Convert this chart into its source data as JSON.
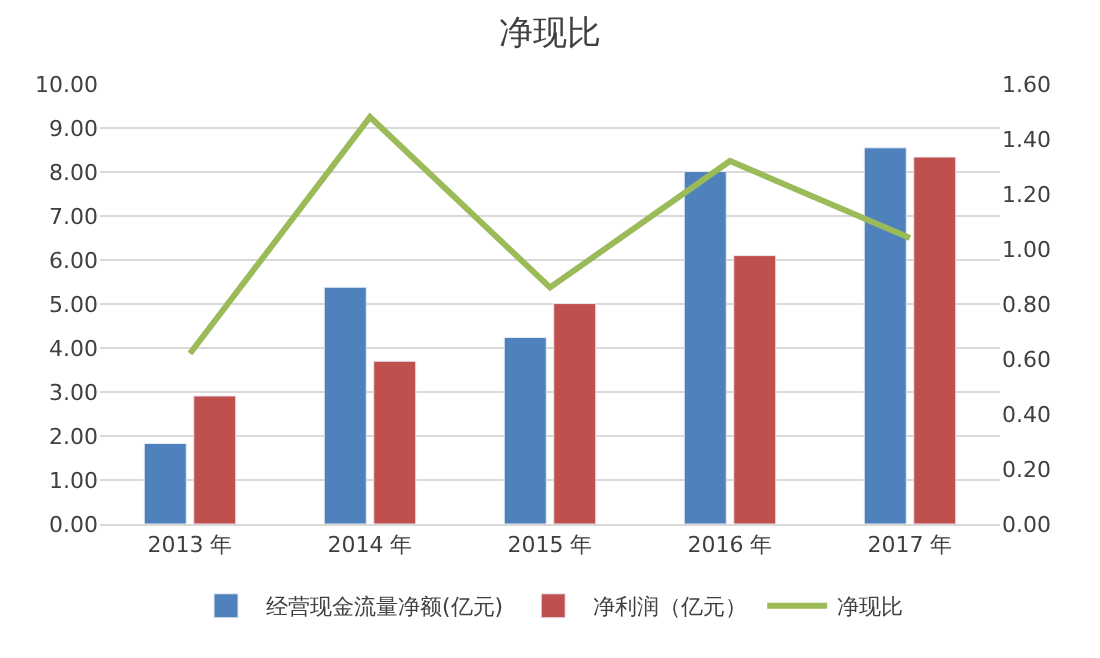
{
  "chart_data": {
    "type": "bar",
    "title": "净现比",
    "categories": [
      "2013 年",
      "2014 年",
      "2015 年",
      "2016 年",
      "2017 年"
    ],
    "series": [
      {
        "name": "经营现金流量净额(亿元)",
        "color": "#4f81bd",
        "values": [
          1.83,
          5.38,
          4.24,
          8.01,
          8.55
        ]
      },
      {
        "name": "净利润（亿元）",
        "color": "#c0504d",
        "values": [
          2.91,
          3.7,
          5.01,
          6.1,
          8.34
        ]
      },
      {
        "name": "净现比",
        "color": "#9bbb59",
        "type": "line",
        "axis": "y2",
        "values": [
          0.62,
          1.48,
          0.86,
          1.32,
          1.04
        ]
      }
    ],
    "ylim": [
      0,
      10
    ],
    "yticks": [
      {
        "value": 0,
        "label": "0.00"
      },
      {
        "value": 1,
        "label": "1.00"
      },
      {
        "value": 2,
        "label": "2.00"
      },
      {
        "value": 3,
        "label": "3.00"
      },
      {
        "value": 4,
        "label": "4.00"
      },
      {
        "value": 5,
        "label": "5.00"
      },
      {
        "value": 6,
        "label": "6.00"
      },
      {
        "value": 7,
        "label": "7.00"
      },
      {
        "value": 8,
        "label": "8.00"
      },
      {
        "value": 9,
        "label": "9.00"
      },
      {
        "value": 10,
        "label": "10.00"
      }
    ],
    "y2lim": [
      0,
      1.6
    ],
    "y2ticks": [
      {
        "value": 0,
        "label": "0.00"
      },
      {
        "value": 0.2,
        "label": "0.20"
      },
      {
        "value": 0.4,
        "label": "0.40"
      },
      {
        "value": 0.6,
        "label": "0.60"
      },
      {
        "value": 0.8,
        "label": "0.80"
      },
      {
        "value": 1.0,
        "label": "1.00"
      },
      {
        "value": 1.2,
        "label": "1.20"
      },
      {
        "value": 1.4,
        "label": "1.40"
      },
      {
        "value": 1.6,
        "label": "1.60"
      }
    ],
    "grid": "y",
    "legend": "bottom",
    "marker": "none",
    "line_style": "solid"
  }
}
